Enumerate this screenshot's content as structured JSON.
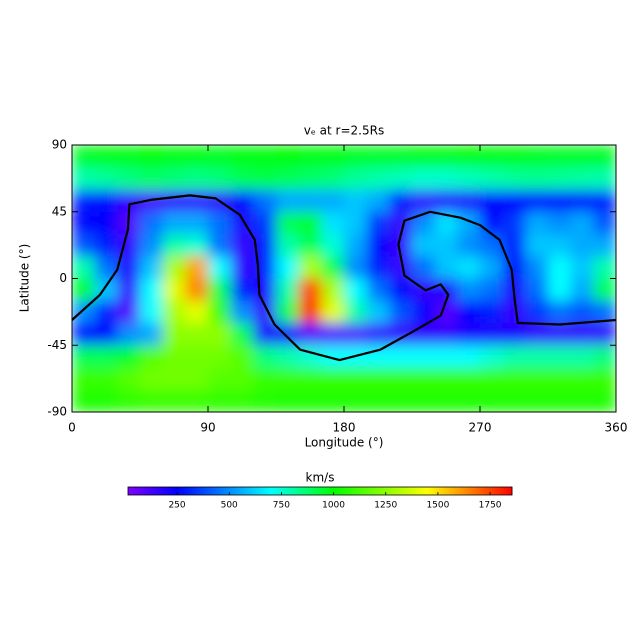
{
  "chart_data": {
    "type": "heatmap",
    "title": "vₑ at r=2.5Rs",
    "x_label": "Longitude (°)",
    "y_label": "Latitude (°)",
    "xlim": [
      0,
      360
    ],
    "ylim": [
      -90,
      90
    ],
    "xticks": [
      0,
      90,
      180,
      270,
      360
    ],
    "yticks": [
      -90,
      -45,
      0,
      45,
      90
    ],
    "xbins": [
      0,
      15,
      30,
      45,
      60,
      75,
      90,
      105,
      120,
      135,
      150,
      165,
      180,
      195,
      210,
      225,
      240,
      255,
      270,
      285,
      300,
      315,
      330,
      345,
      360
    ],
    "ybins": [
      90,
      75,
      60,
      45,
      30,
      15,
      0,
      -15,
      -30,
      -45,
      -60,
      -75,
      -90
    ],
    "z": [
      [
        960,
        980,
        990,
        1000,
        990,
        980,
        970,
        980,
        990,
        1000,
        990,
        980,
        970,
        960,
        970,
        980,
        990,
        1000,
        990,
        980,
        970,
        960,
        960,
        960
      ],
      [
        800,
        820,
        850,
        880,
        860,
        840,
        860,
        900,
        920,
        900,
        880,
        860,
        820,
        800,
        780,
        760,
        760,
        780,
        800,
        820,
        830,
        820,
        810,
        800
      ],
      [
        300,
        280,
        150,
        120,
        150,
        150,
        160,
        250,
        450,
        550,
        550,
        550,
        600,
        550,
        300,
        150,
        180,
        200,
        250,
        250,
        250,
        260,
        270,
        300
      ],
      [
        250,
        250,
        100,
        450,
        550,
        550,
        450,
        200,
        350,
        900,
        950,
        650,
        600,
        350,
        150,
        500,
        650,
        550,
        250,
        350,
        550,
        500,
        550,
        400
      ],
      [
        400,
        300,
        150,
        500,
        800,
        750,
        450,
        150,
        300,
        800,
        900,
        750,
        550,
        250,
        150,
        600,
        600,
        500,
        450,
        300,
        600,
        600,
        550,
        550
      ],
      [
        800,
        450,
        200,
        600,
        1300,
        1600,
        700,
        150,
        300,
        700,
        1300,
        900,
        500,
        300,
        150,
        450,
        600,
        650,
        550,
        250,
        500,
        700,
        600,
        800
      ],
      [
        1000,
        600,
        150,
        700,
        1400,
        1650,
        900,
        300,
        200,
        800,
        1750,
        1300,
        700,
        450,
        250,
        150,
        200,
        500,
        450,
        200,
        450,
        700,
        550,
        900
      ],
      [
        500,
        300,
        100,
        700,
        1300,
        1400,
        1100,
        500,
        150,
        900,
        1800,
        1400,
        800,
        600,
        400,
        250,
        100,
        250,
        300,
        150,
        350,
        450,
        400,
        450
      ],
      [
        250,
        250,
        500,
        550,
        1250,
        1250,
        1250,
        900,
        200,
        200,
        100,
        100,
        100,
        150,
        150,
        150,
        150,
        200,
        200,
        200,
        150,
        150,
        150,
        150
      ],
      [
        900,
        900,
        950,
        1150,
        1200,
        1200,
        1200,
        1150,
        850,
        800,
        750,
        700,
        700,
        700,
        700,
        700,
        700,
        700,
        750,
        800,
        800,
        800,
        800,
        850
      ],
      [
        1100,
        1100,
        1150,
        1200,
        1200,
        1200,
        1150,
        1150,
        1100,
        1100,
        1100,
        1100,
        1100,
        1100,
        1100,
        1100,
        1100,
        1100,
        1100,
        1100,
        1100,
        1100,
        1100,
        1100
      ],
      [
        1050,
        1050,
        1080,
        1100,
        1100,
        1100,
        1080,
        1080,
        1060,
        1050,
        1050,
        1050,
        1050,
        1050,
        1050,
        1050,
        1050,
        1050,
        1050,
        1050,
        1050,
        1050,
        1050,
        1050
      ]
    ],
    "lines": [
      {
        "color": "#000000",
        "x": [
          0,
          18.5,
          30,
          37,
          38,
          52,
          78,
          95,
          111,
          121,
          123,
          124,
          134,
          151,
          177,
          204,
          227,
          244,
          249,
          244,
          234,
          220,
          216,
          220,
          237,
          257,
          270,
          283,
          291,
          293,
          295,
          323,
          360
        ],
        "y": [
          -28,
          -11,
          6,
          33,
          50,
          53,
          56,
          54,
          43,
          26,
          9,
          -11,
          -31,
          -48,
          -55,
          -48,
          -35,
          -25,
          -11,
          -4,
          -8,
          2,
          23,
          39,
          45,
          41,
          36,
          26,
          6,
          -15,
          -30,
          -31,
          -28
        ]
      }
    ],
    "colorscale": [
      [
        15,
        "#8000ff"
      ],
      [
        250,
        "#0000ff"
      ],
      [
        700,
        "#00ffff"
      ],
      [
        1000,
        "#00ff00"
      ],
      [
        1450,
        "#ffff00"
      ],
      [
        1855,
        "#ff0000"
      ]
    ],
    "colorbar": {
      "label": "km/s",
      "lim": [
        15,
        1855
      ],
      "ticks": [
        250,
        500,
        750,
        1000,
        1250,
        1500,
        1750
      ]
    }
  }
}
